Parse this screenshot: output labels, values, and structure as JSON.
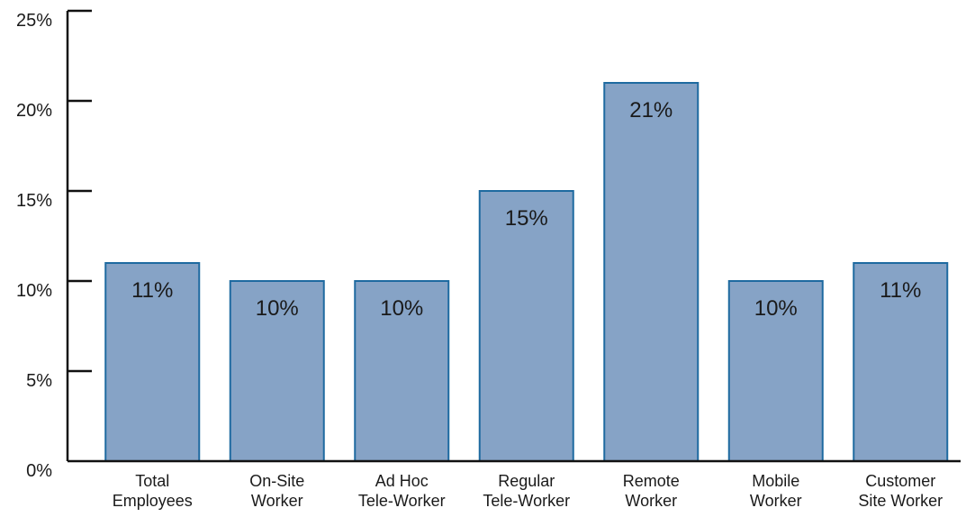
{
  "chart_data": {
    "type": "bar",
    "title": "",
    "xlabel": "",
    "ylabel": "",
    "categories": [
      [
        "Total",
        "Employees"
      ],
      [
        "On-Site",
        "Worker"
      ],
      [
        "Ad Hoc",
        "Tele-Worker"
      ],
      [
        "Regular",
        "Tele-Worker"
      ],
      [
        "Remote",
        "Worker"
      ],
      [
        "Mobile",
        "Worker"
      ],
      [
        "Customer",
        "Site Worker"
      ]
    ],
    "values": [
      11,
      10,
      10,
      15,
      21,
      10,
      11
    ],
    "data_labels": [
      "11%",
      "10%",
      "10%",
      "15%",
      "21%",
      "10%",
      "11%"
    ],
    "ylim": [
      0,
      25
    ],
    "yticks": [
      0,
      5,
      10,
      15,
      20,
      25
    ],
    "ytick_labels": [
      "0%",
      "5%",
      "10%",
      "15%",
      "20%",
      "25%"
    ],
    "grid": false,
    "legend": "none",
    "colors": {
      "bar_fill": "#86a3c6",
      "bar_stroke": "#1e6aa0",
      "axis": "#111111"
    }
  }
}
